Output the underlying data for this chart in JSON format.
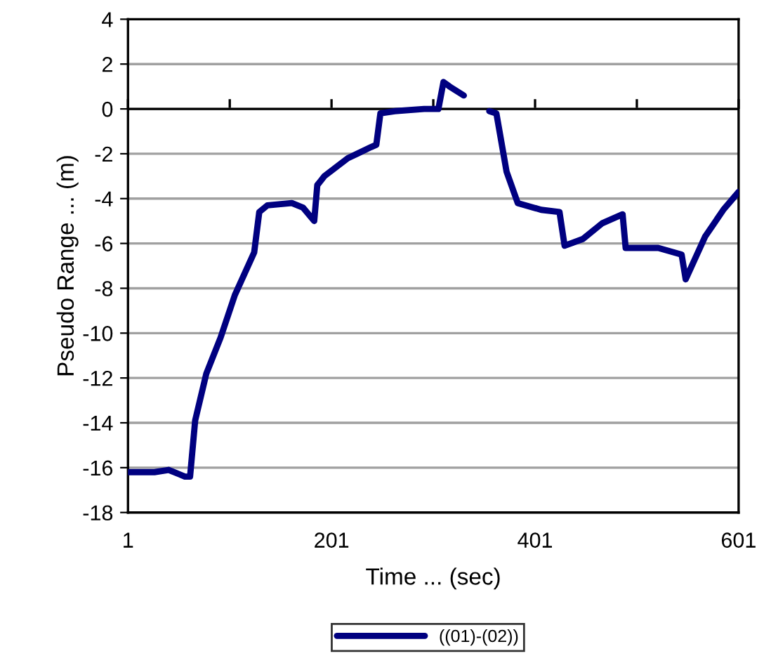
{
  "chart_data": {
    "type": "line",
    "xlabel": "Time ... (sec)",
    "ylabel": "Pseudo Range ... (m)",
    "xlim": [
      1,
      601
    ],
    "xticks": [
      1,
      {
        "value": 101,
        "label": null
      },
      201,
      {
        "value": 301,
        "label": null
      },
      401,
      {
        "value": 501,
        "label": null
      },
      601
    ],
    "ylim": [
      -18,
      4
    ],
    "yticks": [
      -18,
      -16,
      -14,
      -12,
      -10,
      -8,
      -6,
      -4,
      -2,
      0,
      2,
      4
    ],
    "grid": "y",
    "legend": "bottom",
    "marker": "none",
    "line_style": "solid",
    "ref_lines": [
      {
        "axis": "y",
        "value": 0,
        "color": "#000000"
      }
    ],
    "series": [
      {
        "name": "((01)-(02))",
        "color": "#000080",
        "x": [
          1,
          27,
          41,
          57,
          62,
          67,
          78,
          92,
          106,
          125,
          130,
          138,
          162,
          173,
          184,
          187,
          194,
          217,
          240,
          245,
          249,
          263,
          292,
          306,
          311,
          317,
          331,
          343,
          356,
          363,
          373,
          384,
          407,
          425,
          430,
          448,
          467,
          487,
          490,
          522,
          545,
          549,
          568,
          586,
          601
        ],
        "values": [
          -16.2,
          -16.2,
          -16.1,
          -16.4,
          -16.4,
          -13.9,
          -11.8,
          -10.2,
          -8.3,
          -6.4,
          -4.6,
          -4.3,
          -4.2,
          -4.4,
          -5.0,
          -3.4,
          -3.0,
          -2.2,
          -1.7,
          -1.6,
          -0.2,
          -0.1,
          0.0,
          0.0,
          1.2,
          1.0,
          0.6,
          null,
          -0.1,
          -0.2,
          -2.8,
          -4.2,
          -4.5,
          -4.6,
          -6.1,
          -5.8,
          -5.1,
          -4.7,
          -6.2,
          -6.2,
          -6.5,
          -7.6,
          -5.7,
          -4.5,
          -3.7
        ]
      }
    ]
  }
}
